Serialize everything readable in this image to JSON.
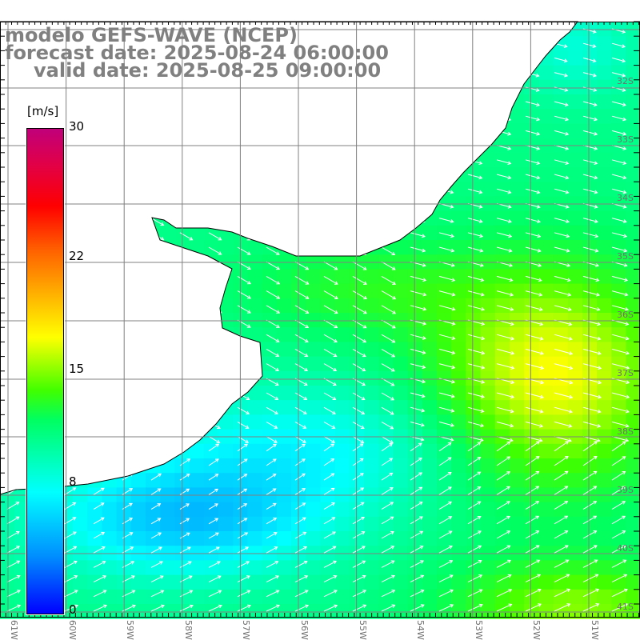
{
  "header": {
    "line1": "modelo GEFS-WAVE (NCEP)",
    "line2": "forecast date: 2025-08-24 06:00:00",
    "line3": "valid date: 2025-08-25 09:00:00"
  },
  "colorbar": {
    "unit": "[m/s]",
    "min": 0,
    "max": 30,
    "ticks": [
      "30",
      "22",
      "15",
      "8",
      "0"
    ],
    "tick_values": [
      30,
      22,
      15,
      8,
      0
    ]
  },
  "latitudes": [
    "32S",
    "33S",
    "34S",
    "35S",
    "36S",
    "37S",
    "38S",
    "39S",
    "40S",
    "41S"
  ],
  "longitudes": [
    "61W",
    "60W",
    "59W",
    "58W",
    "57W",
    "56W",
    "55W",
    "54W",
    "53W",
    "52W",
    "51W"
  ],
  "colors": {
    "land": "#ffffff",
    "grid": "#808080",
    "coast": "#000000",
    "arrow": "#ffffff"
  }
}
